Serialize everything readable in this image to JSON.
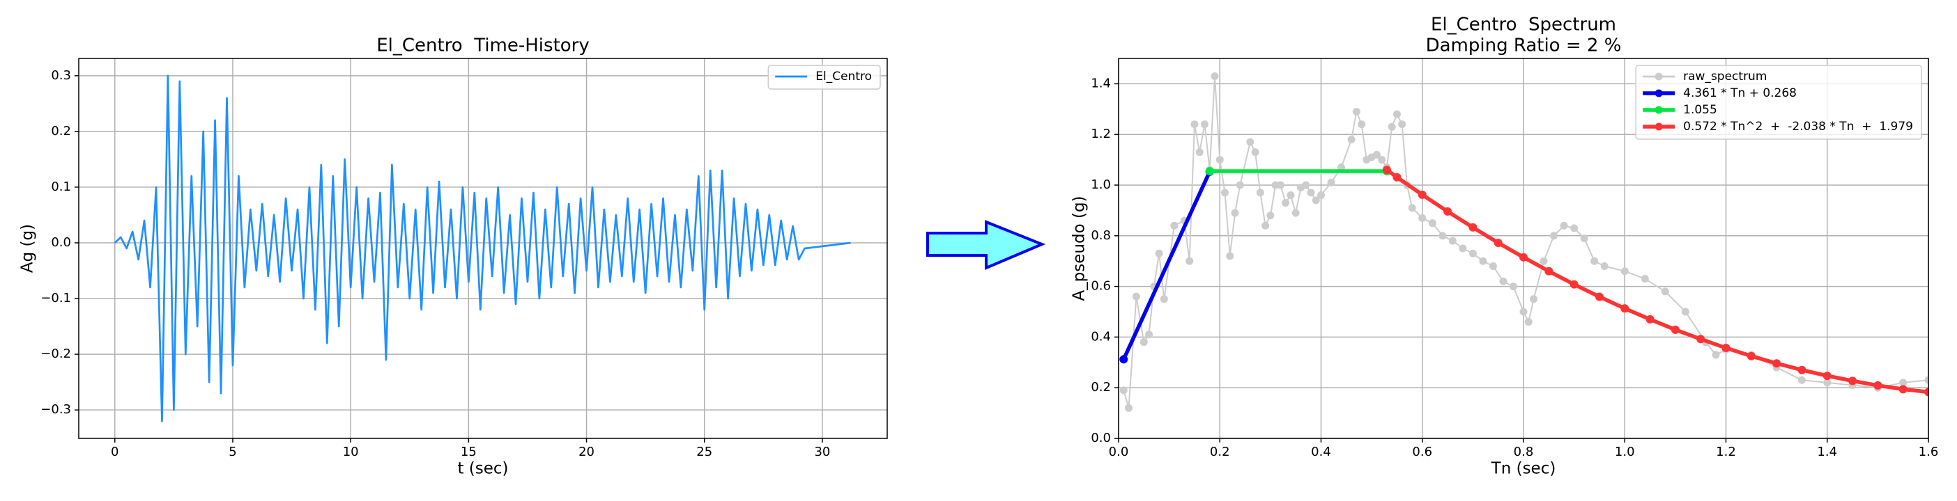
{
  "chart_data": [
    {
      "type": "line",
      "title": "El_Centro  Time-History",
      "x_label": "t (sec)",
      "y_label": "Ag (g)",
      "xlim": [
        -1.53,
        32.75
      ],
      "ylim": [
        -0.351,
        0.331
      ],
      "xticks": [
        0,
        5,
        10,
        15,
        20,
        25,
        30
      ],
      "yticks": [
        {
          "value": -0.3,
          "label": "−0.3"
        },
        {
          "value": -0.2,
          "label": "−0.2"
        },
        {
          "value": -0.1,
          "label": "−0.1"
        },
        {
          "value": 0,
          "label": "0.0"
        },
        {
          "value": 0.1,
          "label": "0.1"
        },
        {
          "value": 0.2,
          "label": "0.2"
        },
        {
          "value": 0.3,
          "label": "0.3"
        }
      ],
      "grid": true,
      "legend": "upper-right",
      "series": [
        {
          "name": "El_Centro",
          "color": "#1e90ff",
          "marker": false,
          "x": [
            0,
            0.25,
            0.5,
            0.75,
            1,
            1.25,
            1.5,
            1.75,
            2,
            2.25,
            2.5,
            2.75,
            3,
            3.25,
            3.5,
            3.75,
            4,
            4.25,
            4.5,
            4.75,
            5,
            5.25,
            5.5,
            5.75,
            6,
            6.25,
            6.5,
            6.75,
            7,
            7.25,
            7.5,
            7.75,
            8,
            8.25,
            8.5,
            8.75,
            9,
            9.25,
            9.5,
            9.75,
            10,
            10.25,
            10.5,
            10.75,
            11,
            11.25,
            11.5,
            11.75,
            12,
            12.25,
            12.5,
            12.75,
            13,
            13.25,
            13.5,
            13.75,
            14,
            14.25,
            14.5,
            14.75,
            15,
            15.25,
            15.5,
            15.75,
            16,
            16.25,
            16.5,
            16.75,
            17,
            17.25,
            17.5,
            17.75,
            18,
            18.25,
            18.5,
            18.75,
            19,
            19.25,
            19.5,
            19.75,
            20,
            20.25,
            20.5,
            20.75,
            21,
            21.25,
            21.5,
            21.75,
            22,
            22.25,
            22.5,
            22.75,
            23,
            23.25,
            23.5,
            23.75,
            24,
            24.25,
            24.5,
            24.75,
            25,
            25.25,
            25.5,
            25.75,
            26,
            26.25,
            26.5,
            26.75,
            27,
            27.25,
            27.5,
            27.75,
            28,
            28.25,
            28.5,
            28.75,
            29,
            29.25,
            31.2
          ],
          "values": [
            0,
            0.01,
            -0.01,
            0.02,
            -0.03,
            0.04,
            -0.08,
            0.1,
            -0.32,
            0.3,
            -0.3,
            0.29,
            -0.2,
            0.12,
            -0.15,
            0.2,
            -0.25,
            0.22,
            -0.27,
            0.26,
            -0.22,
            0.12,
            -0.08,
            0.06,
            -0.05,
            0.07,
            -0.06,
            0.05,
            -0.07,
            0.08,
            -0.05,
            0.06,
            -0.1,
            0.1,
            -0.12,
            0.14,
            -0.18,
            0.12,
            -0.15,
            0.15,
            -0.08,
            0.1,
            -0.1,
            0.08,
            -0.07,
            0.09,
            -0.21,
            0.14,
            -0.08,
            0.07,
            -0.1,
            0.06,
            -0.12,
            0.1,
            -0.09,
            0.11,
            -0.08,
            0.06,
            -0.1,
            0.1,
            -0.07,
            0.09,
            -0.12,
            0.08,
            -0.06,
            0.1,
            -0.09,
            0.05,
            -0.11,
            0.08,
            -0.07,
            0.09,
            -0.1,
            0.06,
            -0.08,
            0.1,
            -0.06,
            0.07,
            -0.09,
            0.08,
            -0.05,
            0.1,
            -0.08,
            0.06,
            -0.07,
            0.05,
            -0.06,
            0.08,
            -0.07,
            0.06,
            -0.09,
            0.07,
            -0.06,
            0.08,
            -0.07,
            0.05,
            -0.08,
            0.06,
            -0.05,
            0.12,
            -0.12,
            0.13,
            -0.08,
            0.13,
            -0.1,
            0.08,
            -0.06,
            0.07,
            -0.05,
            0.06,
            -0.04,
            0.05,
            -0.04,
            0.04,
            -0.03,
            0.03,
            -0.03,
            -0.01,
            0
          ]
        }
      ]
    },
    {
      "type": "line",
      "title": "El_Centro  Spectrum",
      "subtitle": "Damping Ratio = 2 %",
      "x_label": "Tn (sec)",
      "y_label": "A_pseudo (g)",
      "xlim": [
        0,
        1.6
      ],
      "ylim": [
        0,
        1.5
      ],
      "xticks": [
        {
          "value": 0,
          "label": "0.0"
        },
        {
          "value": 0.2,
          "label": "0.2"
        },
        {
          "value": 0.4,
          "label": "0.4"
        },
        {
          "value": 0.6,
          "label": "0.6"
        },
        {
          "value": 0.8,
          "label": "0.8"
        },
        {
          "value": 1,
          "label": "1.0"
        },
        {
          "value": 1.2,
          "label": "1.2"
        },
        {
          "value": 1.4,
          "label": "1.4"
        },
        {
          "value": 1.6,
          "label": "1.6"
        }
      ],
      "yticks": [
        {
          "value": 0,
          "label": "0.0"
        },
        {
          "value": 0.2,
          "label": "0.2"
        },
        {
          "value": 0.4,
          "label": "0.4"
        },
        {
          "value": 0.6,
          "label": "0.6"
        },
        {
          "value": 0.8,
          "label": "0.8"
        },
        {
          "value": 1,
          "label": "1.0"
        },
        {
          "value": 1.2,
          "label": "1.2"
        },
        {
          "value": 1.4,
          "label": "1.4"
        }
      ],
      "grid": true,
      "legend": "upper-right",
      "series": [
        {
          "name": "raw_spectrum",
          "color": "#cccccc",
          "marker": true,
          "x": [
            0.01,
            0.02,
            0.035,
            0.05,
            0.06,
            0.07,
            0.08,
            0.09,
            0.11,
            0.13,
            0.14,
            0.15,
            0.16,
            0.17,
            0.18,
            0.19,
            0.2,
            0.21,
            0.22,
            0.23,
            0.24,
            0.26,
            0.27,
            0.28,
            0.29,
            0.3,
            0.31,
            0.32,
            0.33,
            0.34,
            0.35,
            0.36,
            0.37,
            0.38,
            0.39,
            0.4,
            0.42,
            0.44,
            0.46,
            0.47,
            0.48,
            0.49,
            0.5,
            0.51,
            0.52,
            0.53,
            0.54,
            0.55,
            0.56,
            0.57,
            0.58,
            0.6,
            0.62,
            0.64,
            0.66,
            0.68,
            0.7,
            0.72,
            0.74,
            0.76,
            0.78,
            0.8,
            0.81,
            0.82,
            0.84,
            0.86,
            0.88,
            0.9,
            0.92,
            0.94,
            0.96,
            1,
            1.04,
            1.08,
            1.12,
            1.16,
            1.18,
            1.2,
            1.25,
            1.3,
            1.35,
            1.4,
            1.45,
            1.5,
            1.55,
            1.6
          ],
          "values": [
            0.19,
            0.12,
            0.56,
            0.38,
            0.41,
            0.6,
            0.73,
            0.55,
            0.84,
            0.86,
            0.7,
            1.24,
            1.13,
            1.24,
            1.06,
            1.43,
            1.1,
            0.97,
            0.72,
            0.89,
            1.0,
            1.17,
            1.13,
            0.97,
            0.84,
            0.88,
            1.0,
            1.0,
            0.93,
            0.96,
            0.89,
            0.99,
            1.0,
            0.97,
            0.94,
            0.96,
            1.01,
            1.07,
            1.18,
            1.29,
            1.24,
            1.1,
            1.11,
            1.12,
            1.1,
            1.07,
            1.23,
            1.28,
            1.24,
            1.0,
            0.91,
            0.87,
            0.85,
            0.8,
            0.78,
            0.75,
            0.73,
            0.7,
            0.68,
            0.62,
            0.6,
            0.5,
            0.46,
            0.55,
            0.7,
            0.8,
            0.84,
            0.83,
            0.79,
            0.7,
            0.68,
            0.66,
            0.63,
            0.58,
            0.5,
            0.38,
            0.33,
            0.35,
            0.33,
            0.28,
            0.23,
            0.22,
            0.21,
            0.2,
            0.22,
            0.23
          ]
        },
        {
          "name": "4.361 * Tn + 0.268",
          "color": "#0000ee",
          "marker": true,
          "x": [
            0.01,
            0.18
          ],
          "values": [
            0.312,
            1.053
          ]
        },
        {
          "name": "1.055",
          "color": "#00e640",
          "marker": true,
          "x": [
            0.18,
            0.53
          ],
          "values": [
            1.055,
            1.055
          ]
        },
        {
          "name": "0.572 * Tn^2  +  -2.038 * Tn  +  1.979",
          "color": "#ff3333",
          "marker": true,
          "x": [
            0.53,
            0.55,
            0.6,
            0.65,
            0.7,
            0.75,
            0.8,
            0.85,
            0.9,
            0.95,
            1,
            1.05,
            1.1,
            1.15,
            1.2,
            1.25,
            1.3,
            1.35,
            1.4,
            1.45,
            1.5,
            1.55,
            1.6
          ],
          "values": [
            1.06,
            1.031,
            0.962,
            0.896,
            0.833,
            0.772,
            0.715,
            0.66,
            0.608,
            0.559,
            0.513,
            0.47,
            0.429,
            0.392,
            0.357,
            0.325,
            0.296,
            0.27,
            0.247,
            0.227,
            0.209,
            0.194,
            0.183
          ]
        }
      ]
    }
  ]
}
